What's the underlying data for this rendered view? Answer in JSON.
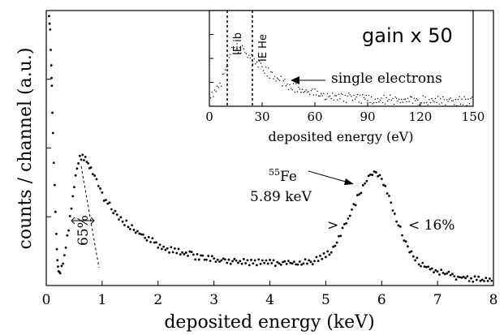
{
  "chart_data": [
    {
      "type": "scatter",
      "xlabel": "deposited energy (keV)",
      "ylabel": "counts / channel (a.u.)",
      "xlim": [
        0,
        8
      ],
      "xticks": [
        "0",
        "1",
        "2",
        "3",
        "4",
        "5",
        "6",
        "7",
        "8"
      ],
      "y_tick_labels": "none",
      "series": [
        {
          "points": [
            [
              0.05,
              0.98
            ],
            [
              0.07,
              0.92
            ],
            [
              0.09,
              0.8
            ],
            [
              0.1,
              0.72
            ],
            [
              0.12,
              0.55
            ],
            [
              0.15,
              0.36
            ],
            [
              0.18,
              0.18
            ],
            [
              0.2,
              0.09
            ],
            [
              0.22,
              0.06
            ],
            [
              0.25,
              0.05
            ],
            [
              0.3,
              0.08
            ],
            [
              0.35,
              0.14
            ],
            [
              0.4,
              0.21
            ],
            [
              0.45,
              0.28
            ],
            [
              0.5,
              0.36
            ],
            [
              0.55,
              0.42
            ],
            [
              0.6,
              0.46
            ],
            [
              0.65,
              0.47
            ],
            [
              0.7,
              0.46
            ],
            [
              0.75,
              0.44
            ],
            [
              0.8,
              0.42
            ],
            [
              0.9,
              0.38
            ],
            [
              1.0,
              0.33
            ],
            [
              1.2,
              0.27
            ],
            [
              1.4,
              0.23
            ],
            [
              1.6,
              0.2
            ],
            [
              1.8,
              0.17
            ],
            [
              2.0,
              0.15
            ],
            [
              2.2,
              0.13
            ],
            [
              2.4,
              0.12
            ],
            [
              2.6,
              0.11
            ],
            [
              2.8,
              0.1
            ],
            [
              3.0,
              0.095
            ],
            [
              3.2,
              0.09
            ],
            [
              3.4,
              0.088
            ],
            [
              3.6,
              0.085
            ],
            [
              3.8,
              0.083
            ],
            [
              4.0,
              0.082
            ],
            [
              4.2,
              0.082
            ],
            [
              4.4,
              0.083
            ],
            [
              4.6,
              0.085
            ],
            [
              4.8,
              0.09
            ],
            [
              5.0,
              0.11
            ],
            [
              5.1,
              0.13
            ],
            [
              5.2,
              0.16
            ],
            [
              5.3,
              0.2
            ],
            [
              5.4,
              0.24
            ],
            [
              5.5,
              0.29
            ],
            [
              5.6,
              0.33
            ],
            [
              5.7,
              0.37
            ],
            [
              5.8,
              0.4
            ],
            [
              5.9,
              0.41
            ],
            [
              6.0,
              0.39
            ],
            [
              6.1,
              0.34
            ],
            [
              6.2,
              0.28
            ],
            [
              6.3,
              0.22
            ],
            [
              6.4,
              0.17
            ],
            [
              6.5,
              0.13
            ],
            [
              6.6,
              0.1
            ],
            [
              6.7,
              0.08
            ],
            [
              6.8,
              0.065
            ],
            [
              7.0,
              0.05
            ],
            [
              7.2,
              0.04
            ],
            [
              7.4,
              0.03
            ],
            [
              7.6,
              0.025
            ],
            [
              7.8,
              0.02
            ],
            [
              8.0,
              0.018
            ]
          ]
        }
      ],
      "annotations": [
        {
          "text": "65%",
          "x": 0.75,
          "y": 0.22
        },
        {
          "text": "< 16%",
          "x": 6.6,
          "y": 0.27
        },
        {
          "text": ">",
          "x": 5.15,
          "y": 0.27
        },
        {
          "text_sup": "55",
          "text": "Fe",
          "x": 4.1,
          "y": 0.58
        },
        {
          "text": "5.89 keV",
          "x": 4.1,
          "y": 0.47
        }
      ]
    },
    {
      "type": "scatter",
      "title": "gain x 50",
      "xlabel": "deposited energy (eV)",
      "xlim": [
        0,
        150
      ],
      "xticks": [
        "0",
        "30",
        "60",
        "90",
        "120",
        "150"
      ],
      "y_tick_labels": "none",
      "vertical_lines": [
        {
          "x": 10,
          "label": "IE ib"
        },
        {
          "x": 24,
          "label": "IE He"
        }
      ],
      "series": [
        {
          "points": [
            [
              0,
              0.12
            ],
            [
              3,
              0.16
            ],
            [
              6,
              0.22
            ],
            [
              9,
              0.35
            ],
            [
              12,
              0.55
            ],
            [
              15,
              0.62
            ],
            [
              18,
              0.6
            ],
            [
              21,
              0.55
            ],
            [
              24,
              0.5
            ],
            [
              27,
              0.46
            ],
            [
              30,
              0.4
            ],
            [
              35,
              0.33
            ],
            [
              40,
              0.27
            ],
            [
              45,
              0.22
            ],
            [
              50,
              0.18
            ],
            [
              55,
              0.15
            ],
            [
              60,
              0.13
            ],
            [
              70,
              0.1
            ],
            [
              80,
              0.085
            ],
            [
              90,
              0.075
            ],
            [
              100,
              0.07
            ],
            [
              110,
              0.065
            ],
            [
              120,
              0.06
            ],
            [
              130,
              0.06
            ],
            [
              140,
              0.055
            ],
            [
              150,
              0.055
            ]
          ]
        }
      ],
      "annotations": [
        {
          "text": "single electrons",
          "x": 82,
          "y": 0.55
        }
      ]
    }
  ]
}
